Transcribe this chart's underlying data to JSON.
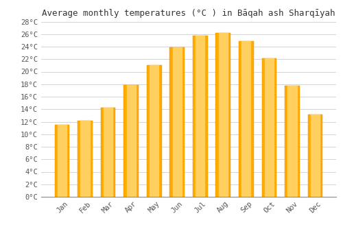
{
  "title": "Average monthly temperatures (°C ) in Bāqah ash Sharqīyah",
  "months": [
    "Jan",
    "Feb",
    "Mar",
    "Apr",
    "May",
    "Jun",
    "Jul",
    "Aug",
    "Sep",
    "Oct",
    "Nov",
    "Dec"
  ],
  "values": [
    11.5,
    12.2,
    14.3,
    17.9,
    21.0,
    23.9,
    25.8,
    26.2,
    24.9,
    22.1,
    17.7,
    13.2
  ],
  "bar_color": "#FFAA00",
  "bar_color2": "#FFD060",
  "background_color": "#FFFFFF",
  "grid_color": "#CCCCCC",
  "ytick_step": 2,
  "ymin": 0,
  "ymax": 28,
  "title_fontsize": 9,
  "tick_fontsize": 7.5,
  "font_family": "monospace"
}
